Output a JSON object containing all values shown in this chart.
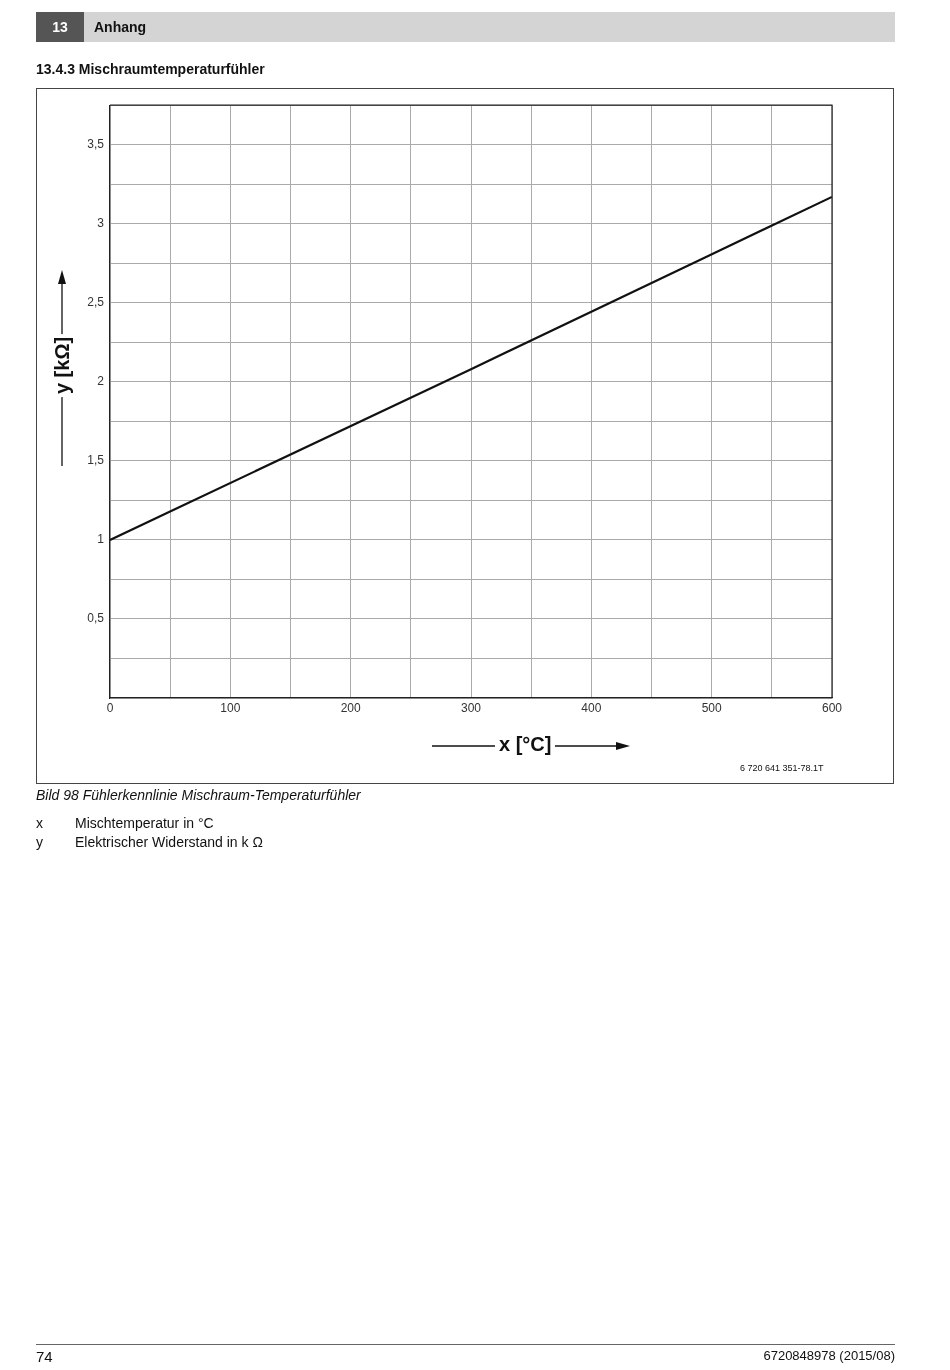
{
  "chart_data": {
    "type": "line",
    "title": "13.4.3 Mischraumtemperaturfühler",
    "xlabel": "x [°C]",
    "ylabel": "y [kΩ]",
    "annotations": [
      "13",
      "Anhang",
      "6 720 641 351-78.1T",
      "Bild 98 Fühlerkennlinie Mischraum-Temperaturfühler",
      "x",
      "Mischtemperatur in °C",
      "y",
      "Elektrischer Widerstand in k Ω",
      "74",
      "6720848978 (2015/08)"
    ],
    "x": [
      0,
      300,
      600
    ],
    "series": [
      {
        "color": "#111111",
        "values": [
          1.0,
          2.08,
          3.17
        ]
      }
    ],
    "xlim": [
      0,
      600
    ],
    "xticks": [
      0,
      {
        "value": 50,
        "label": null
      },
      100,
      {
        "value": 150,
        "label": null
      },
      200,
      {
        "value": 250,
        "label": null
      },
      300,
      {
        "value": 350,
        "label": null
      },
      400,
      {
        "value": 450,
        "label": null
      },
      500,
      {
        "value": 550,
        "label": null
      },
      600
    ],
    "ylim": [
      0,
      3.75
    ],
    "yticks": [
      {
        "value": 0,
        "label": null
      },
      {
        "value": 0.25,
        "label": null
      },
      {
        "value": 0.5,
        "label": "0,5"
      },
      {
        "value": 0.75,
        "label": null
      },
      1,
      {
        "value": 1.25,
        "label": null
      },
      {
        "value": 1.5,
        "label": "1,5"
      },
      {
        "value": 1.75,
        "label": null
      },
      2,
      {
        "value": 2.25,
        "label": null
      },
      {
        "value": 2.5,
        "label": "2,5"
      },
      {
        "value": 2.75,
        "label": null
      },
      3,
      {
        "value": 3.25,
        "label": null
      },
      {
        "value": 3.5,
        "label": "3,5"
      },
      {
        "value": 3.75,
        "label": null
      }
    ],
    "grid": true,
    "marker": "none",
    "line_style": "solid"
  }
}
